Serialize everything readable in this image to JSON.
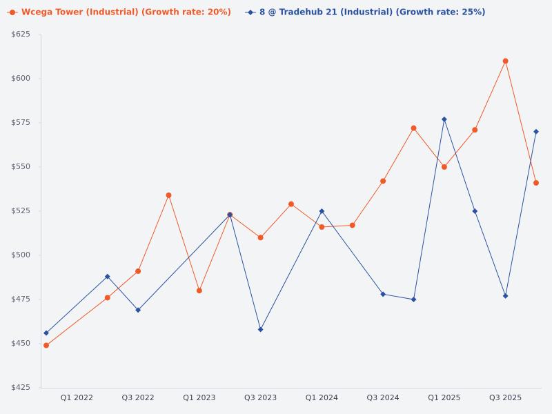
{
  "chart_data": {
    "type": "line",
    "categories": [
      null,
      "Q1 2022",
      null,
      "Q3 2022",
      null,
      "Q1 2023",
      null,
      "Q3 2023",
      null,
      "Q1 2024",
      null,
      "Q3 2024",
      null,
      "Q1 2025",
      null,
      "Q3 2025",
      null
    ],
    "series": [
      {
        "name": "Wcega Tower (Industrial) (Growth rate: 20%)",
        "color": "#f05a28",
        "marker": "circle",
        "values": [
          449,
          null,
          476,
          491,
          534,
          480,
          523,
          510,
          529,
          516,
          517,
          542,
          572,
          550,
          571,
          610,
          541
        ]
      },
      {
        "name": "8 @ Tradehub 21 (Industrial) (Growth rate: 25%)",
        "color": "#2a52a0",
        "marker": "diamond",
        "values": [
          456,
          null,
          488,
          469,
          null,
          null,
          523,
          458,
          null,
          525,
          null,
          478,
          475,
          577,
          525,
          477,
          570
        ]
      }
    ],
    "connect_gaps": true,
    "ylim": [
      425,
      625
    ],
    "yticks": [
      {
        "value": 425,
        "label": "$425"
      },
      {
        "value": 450,
        "label": "$450"
      },
      {
        "value": 475,
        "label": "$475"
      },
      {
        "value": 500,
        "label": "$500"
      },
      {
        "value": 525,
        "label": "$525"
      },
      {
        "value": 550,
        "label": "$550"
      },
      {
        "value": 575,
        "label": "$575"
      },
      {
        "value": 600,
        "label": "$600"
      },
      {
        "value": 625,
        "label": "$625"
      }
    ],
    "grid": false,
    "legend": "top"
  }
}
